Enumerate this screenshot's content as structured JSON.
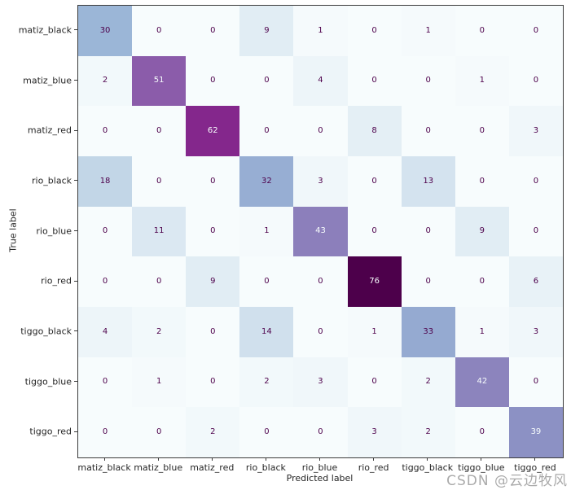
{
  "figure": {
    "watermark": "CSDN @云边牧风"
  },
  "chart_data": {
    "type": "heatmap",
    "subtype": "confusion-matrix",
    "title": "",
    "xlabel": "Predicted label",
    "ylabel": "True label",
    "x_tick_labels": [
      "matiz_black",
      "matiz_blue",
      "matiz_red",
      "rio_black",
      "rio_blue",
      "rio_red",
      "tiggo_black",
      "tiggo_blue",
      "tiggo_red"
    ],
    "y_tick_labels": [
      "matiz_black",
      "matiz_blue",
      "matiz_red",
      "rio_black",
      "rio_blue",
      "rio_red",
      "tiggo_black",
      "tiggo_blue",
      "tiggo_red"
    ],
    "matrix": [
      [
        30,
        0,
        0,
        9,
        1,
        0,
        1,
        0,
        0
      ],
      [
        2,
        51,
        0,
        0,
        4,
        0,
        0,
        1,
        0
      ],
      [
        0,
        0,
        62,
        0,
        0,
        8,
        0,
        0,
        3
      ],
      [
        18,
        0,
        0,
        32,
        3,
        0,
        13,
        0,
        0
      ],
      [
        0,
        11,
        0,
        1,
        43,
        0,
        0,
        9,
        0
      ],
      [
        0,
        0,
        9,
        0,
        0,
        76,
        0,
        0,
        6
      ],
      [
        4,
        2,
        0,
        14,
        0,
        1,
        33,
        1,
        3
      ],
      [
        0,
        1,
        0,
        2,
        3,
        0,
        2,
        42,
        0
      ],
      [
        0,
        0,
        2,
        0,
        0,
        3,
        2,
        0,
        39
      ]
    ],
    "vmin": 0,
    "vmax": 76,
    "colormap": "BuPu",
    "colormap_stops": [
      {
        "pos": 0.0,
        "color": "#f7fcfd"
      },
      {
        "pos": 0.125,
        "color": "#e0ecf4"
      },
      {
        "pos": 0.25,
        "color": "#bfd3e6"
      },
      {
        "pos": 0.375,
        "color": "#9ebcda"
      },
      {
        "pos": 0.5,
        "color": "#8c96c6"
      },
      {
        "pos": 0.625,
        "color": "#8c6bb1"
      },
      {
        "pos": 0.75,
        "color": "#88419d"
      },
      {
        "pos": 0.875,
        "color": "#810f7c"
      },
      {
        "pos": 1.0,
        "color": "#4d004b"
      }
    ],
    "text_color_low_cells": "#4d004b",
    "text_color_high_cells": "#f7fcfd",
    "text_threshold": 38,
    "grid": false,
    "legend": "none"
  }
}
